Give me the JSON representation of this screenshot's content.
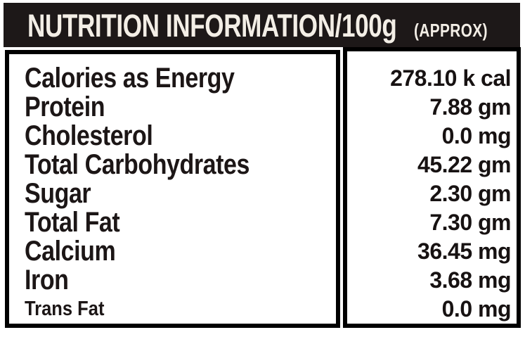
{
  "header": {
    "title": "NUTRITION INFORMATION/100g",
    "suffix": "(APPROX)"
  },
  "rows": [
    {
      "label": "Calories as Energy",
      "value": "278.10 k cal"
    },
    {
      "label": "Protein",
      "value": "7.88 gm"
    },
    {
      "label": "Cholesterol",
      "value": "0.0 mg"
    },
    {
      "label": "Total Carbohydrates",
      "value": "45.22 gm"
    },
    {
      "label": "Sugar",
      "value": "2.30 gm"
    },
    {
      "label": "Total Fat",
      "value": "7.30 gm"
    },
    {
      "label": "Calcium",
      "value": "36.45 mg"
    },
    {
      "label": "Iron",
      "value": "3.68 mg"
    },
    {
      "label": "Trans Fat",
      "value": "0.0 mg"
    }
  ],
  "colors": {
    "header_bg": "#1d1818",
    "header_text": "#f3eee6",
    "label_text": "#1c1616",
    "value_text": "#171212",
    "border": "#000000",
    "page_bg": "#ffffff"
  }
}
